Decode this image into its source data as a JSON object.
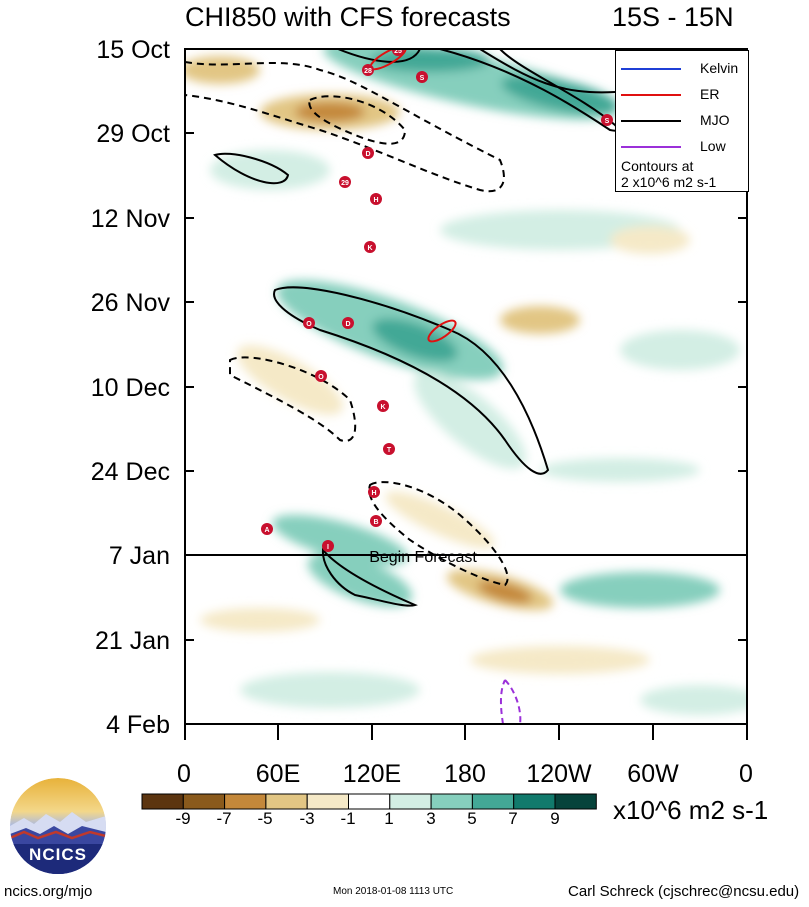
{
  "title": "CHI850 with CFS forecasts",
  "region": "15S - 15N",
  "y_axis": {
    "tick_labels": [
      "15 Oct",
      "29 Oct",
      "12 Nov",
      "26 Nov",
      "10 Dec",
      "24 Dec",
      "7 Jan",
      "21 Jan",
      "4 Feb"
    ]
  },
  "x_axis": {
    "tick_labels": [
      "0",
      "60E",
      "120E",
      "180",
      "120W",
      "60W",
      "0"
    ]
  },
  "legend": {
    "items": [
      {
        "label": "Kelvin",
        "color": "#1f3fd6"
      },
      {
        "label": "ER",
        "color": "#e01010"
      },
      {
        "label": "MJO",
        "color": "#000000"
      },
      {
        "label": "Low",
        "color": "#9b30d9"
      }
    ],
    "note_line1": "Contours at",
    "note_line2": "2 x10^6 m2 s-1"
  },
  "forecast_label": "Begin Forecast",
  "colorbar": {
    "labels": [
      "-9",
      "-7",
      "-5",
      "-3",
      "-1",
      "1",
      "3",
      "5",
      "7",
      "9"
    ],
    "colors": [
      "#5c3510",
      "#8a5a1c",
      "#c4883a",
      "#e2c684",
      "#f5e9c7",
      "#ffffff",
      "#d3eee4",
      "#86cfbd",
      "#43a896",
      "#117a6c",
      "#06433b"
    ],
    "units": "x10^6 m2 s-1"
  },
  "storm_labels": [
    "28",
    "S",
    "S",
    "D",
    "29",
    "H",
    "K",
    "O",
    "D",
    "O",
    "K",
    "T",
    "H",
    "A",
    "B",
    "I"
  ],
  "logo_text": "NCICS",
  "footer": {
    "left": "ncics.org/mjo",
    "center": "Mon 2018-01-08 1113 UTC",
    "right": "Carl Schreck (cjschrec@ncsu.edu)"
  },
  "chart_data": {
    "type": "heatmap",
    "x_range": [
      "0",
      "0"
    ],
    "y_range": [
      "15 Oct",
      "4 Feb"
    ],
    "forecast_start": "7 Jan",
    "series": [
      {
        "name": "MJO",
        "color": "#000000"
      },
      {
        "name": "ER",
        "color": "#e01010"
      },
      {
        "name": "Kelvin",
        "color": "#1f3fd6"
      },
      {
        "name": "Low",
        "color": "#9b30d9"
      }
    ]
  }
}
